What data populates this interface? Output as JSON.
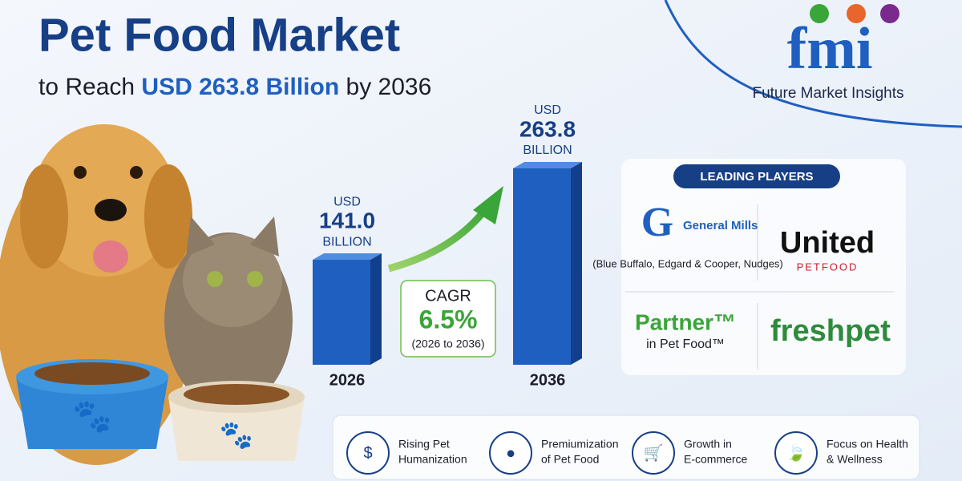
{
  "header": {
    "title": "Pet Food Market",
    "subtitle_start": "to Reach",
    "subtitle_highlight": "USD 263.8 Billion",
    "subtitle_end": "by 2036"
  },
  "logo": {
    "mark": "fmi",
    "name": "Future Market Insights"
  },
  "chart_data": {
    "type": "bar",
    "categories": [
      "2026",
      "2036"
    ],
    "values": [
      141.0,
      263.8
    ],
    "value_labels": [
      "141.0",
      "263.8"
    ],
    "value_prefix": "USD",
    "value_suffix": "BILLION",
    "color": "#1f5fbf"
  },
  "cagr": {
    "label": "CAGR",
    "value": "6.5%",
    "period": "(2026 to 2036)"
  },
  "players": {
    "title": "LEADING PLAYERS",
    "items": [
      {
        "name": "General Mills",
        "note": "(Blue Buffalo, Edgard & Cooper, Nudges)"
      },
      {
        "name": "United",
        "note": "PETFOOD"
      },
      {
        "name": "Partner™",
        "note": "in Pet Food™"
      },
      {
        "name": "freshpet"
      }
    ]
  },
  "drivers": [
    {
      "line1": "Rising Pet",
      "line2": "Humanization"
    },
    {
      "line1": "Premiumization",
      "line2": "of Pet Food"
    },
    {
      "line1": "Growth in",
      "line2": "E-commerce"
    },
    {
      "line1": "Focus on Health",
      "line2": "& Wellness"
    }
  ]
}
